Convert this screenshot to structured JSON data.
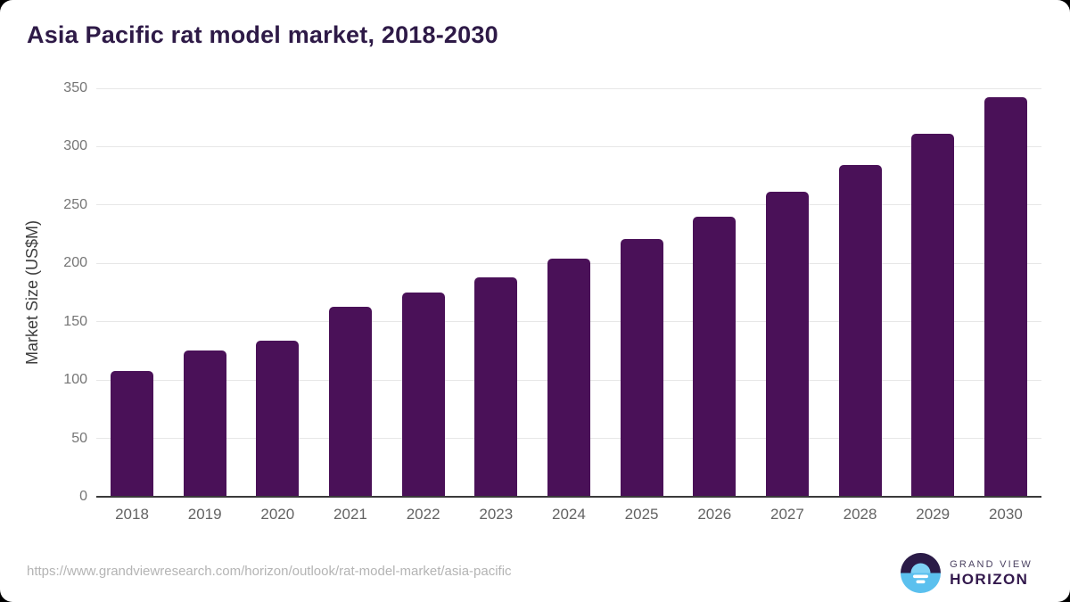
{
  "page": {
    "title": "Asia Pacific rat model market, 2018-2030"
  },
  "chart_data": {
    "type": "bar",
    "title": "Asia Pacific rat model market, 2018-2030",
    "categories": [
      "2018",
      "2019",
      "2020",
      "2021",
      "2022",
      "2023",
      "2024",
      "2025",
      "2026",
      "2027",
      "2028",
      "2029",
      "2030"
    ],
    "values": [
      108,
      125,
      134,
      163,
      175,
      188,
      204,
      221,
      240,
      261,
      284,
      311,
      342
    ],
    "xlabel": "",
    "ylabel": "Market Size (US$M)",
    "ylim": [
      0,
      350
    ],
    "yticks": [
      0,
      50,
      100,
      150,
      200,
      250,
      300,
      350
    ],
    "grid": "horizontal",
    "legend": "none",
    "bar_color": "#4A1158"
  },
  "colors": {
    "title_text": "#2E1A47",
    "bar": "#4A1158",
    "gridline": "#e7e7e7",
    "axis_line": "#3a3a3a",
    "y_tick_text": "#757575",
    "x_tick_text": "#636363",
    "url_text": "#b4b4b4",
    "logo_dark": "#2B1B47",
    "logo_blue": "#5BC0EE"
  },
  "footer": {
    "source_url": "https://www.grandviewresearch.com/horizon/outlook/rat-model-market/asia-pacific",
    "logo": {
      "line1": "GRAND VIEW",
      "line2": "HORIZON"
    }
  }
}
